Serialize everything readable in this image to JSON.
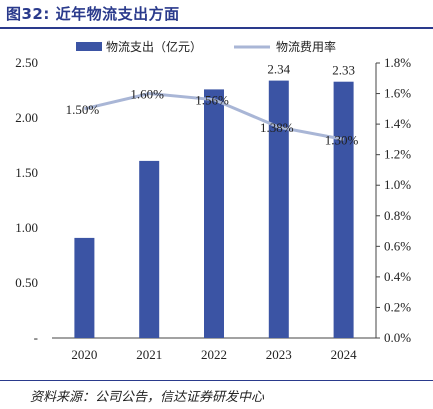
{
  "figure_title": "图32: 近年物流支出方面",
  "source_note": "资料来源：公司公告，信达证券研发中心",
  "colors": {
    "bar": "#3b54a4",
    "line": "#a9b6d6",
    "title": "#2a3a8c"
  },
  "chart_data": {
    "type": "bar+line",
    "categories": [
      "2020",
      "2021",
      "2022",
      "2023",
      "2024"
    ],
    "series": [
      {
        "name": "物流支出（亿元）",
        "type": "bar",
        "axis": "left",
        "values": [
          0.91,
          1.61,
          2.26,
          2.34,
          2.33
        ],
        "data_labels": [
          "",
          "",
          "",
          "2.34",
          "2.33"
        ]
      },
      {
        "name": "物流费用率",
        "type": "line",
        "axis": "right",
        "values": [
          1.5,
          1.6,
          1.56,
          1.38,
          1.3
        ],
        "data_labels": [
          "1.50%",
          "1.60%",
          "1.56%",
          "1.38%",
          "1.30%"
        ]
      }
    ],
    "y_left": {
      "ylim": [
        0,
        2.5
      ],
      "ticks": [
        "-",
        "0.50",
        "1.00",
        "1.50",
        "2.00",
        "2.50"
      ]
    },
    "y_right": {
      "ylim": [
        0,
        1.8
      ],
      "ticks": [
        "0.0%",
        "0.2%",
        "0.4%",
        "0.6%",
        "0.8%",
        "1.0%",
        "1.2%",
        "1.4%",
        "1.6%",
        "1.8%"
      ]
    },
    "legend_position": "top",
    "grid": false
  }
}
